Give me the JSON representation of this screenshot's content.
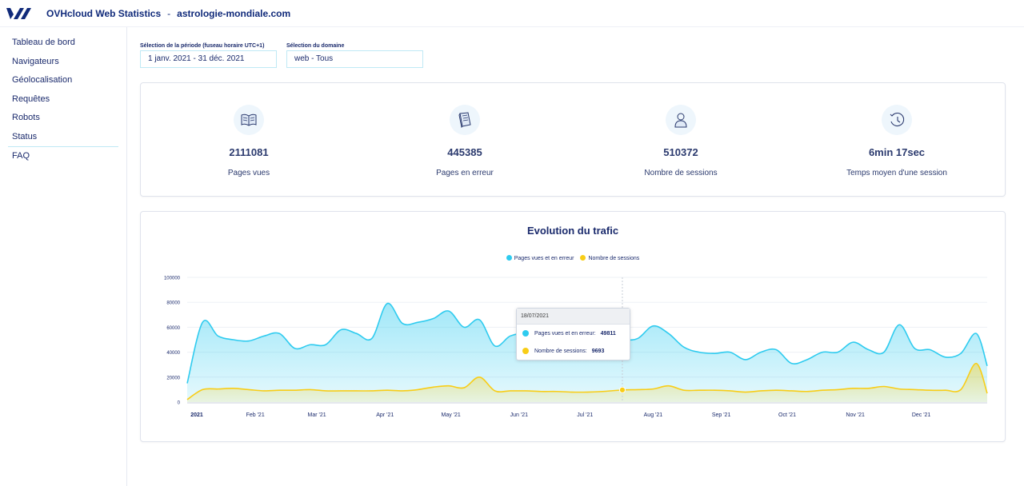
{
  "header": {
    "app_title": "OVHcloud Web Statistics",
    "separator": "-",
    "domain": "astrologie-mondiale.com"
  },
  "sidebar": {
    "items": [
      {
        "label": "Tableau de bord"
      },
      {
        "label": "Navigateurs"
      },
      {
        "label": "Géolocalisation"
      },
      {
        "label": "Requêtes"
      },
      {
        "label": "Robots"
      },
      {
        "label": "Status"
      },
      {
        "label": "FAQ"
      }
    ]
  },
  "filters": {
    "period_label": "Sélection de la période (fuseau horaire UTC+1)",
    "period_value": "1 janv. 2021 - 31 déc. 2021",
    "domain_label": "Sélection du domaine",
    "domain_value": "web - Tous"
  },
  "stats": [
    {
      "icon": "open-book-icon",
      "value": "2111081",
      "label": "Pages vues"
    },
    {
      "icon": "broken-page-icon",
      "value": "445385",
      "label": "Pages en erreur"
    },
    {
      "icon": "user-icon",
      "value": "510372",
      "label": "Nombre de sessions"
    },
    {
      "icon": "clock-history-icon",
      "value": "6min 17sec",
      "label": "Temps moyen d'une session"
    }
  ],
  "colors": {
    "pages": "#2ecbef",
    "sessions": "#f8cd17",
    "brand": "#102a7a"
  },
  "tooltip": {
    "date": "18/07/2021",
    "rows": [
      {
        "label": "Pages vues et en erreur:",
        "value": "49811"
      },
      {
        "label": "Nombre de sessions:",
        "value": "9693"
      }
    ]
  },
  "chart_data": {
    "type": "area",
    "title": "Evolution du trafic",
    "ylim": [
      0,
      100000
    ],
    "yticks": [
      0,
      20000,
      40000,
      60000,
      80000,
      100000
    ],
    "xtick_labels": [
      "2021",
      "Feb '21",
      "Mar '21",
      "Apr '21",
      "May '21",
      "Jun '21",
      "Jul '21",
      "Aug '21",
      "Sep '21",
      "Oct '21",
      "Nov '21",
      "Dec '21"
    ],
    "grid": true,
    "legend": "top-center",
    "series": [
      {
        "name": "Pages vues et en erreur",
        "x": [
          "2021-01-01",
          "2021-01-08",
          "2021-01-15",
          "2021-01-22",
          "2021-01-29",
          "2021-02-05",
          "2021-02-12",
          "2021-02-19",
          "2021-02-26",
          "2021-03-05",
          "2021-03-12",
          "2021-03-19",
          "2021-03-26",
          "2021-04-02",
          "2021-04-09",
          "2021-04-16",
          "2021-04-23",
          "2021-04-30",
          "2021-05-07",
          "2021-05-14",
          "2021-05-21",
          "2021-05-28",
          "2021-06-04",
          "2021-06-11",
          "2021-06-18",
          "2021-06-25",
          "2021-07-02",
          "2021-07-09",
          "2021-07-18",
          "2021-07-25",
          "2021-08-01",
          "2021-08-08",
          "2021-08-15",
          "2021-08-22",
          "2021-08-29",
          "2021-09-05",
          "2021-09-12",
          "2021-09-19",
          "2021-09-26",
          "2021-10-03",
          "2021-10-10",
          "2021-10-17",
          "2021-10-24",
          "2021-10-31",
          "2021-11-07",
          "2021-11-14",
          "2021-11-21",
          "2021-11-28",
          "2021-12-05",
          "2021-12-12",
          "2021-12-19",
          "2021-12-26",
          "2021-12-31"
        ],
        "values": [
          15000,
          64000,
          53000,
          50000,
          49000,
          53000,
          55000,
          43000,
          46000,
          46000,
          58000,
          55000,
          51000,
          79000,
          63000,
          64000,
          67000,
          73000,
          60000,
          66000,
          45000,
          53000,
          55000,
          52000,
          50000,
          48000,
          52000,
          50000,
          49811,
          51000,
          61000,
          55000,
          44000,
          40000,
          39000,
          40000,
          34000,
          40000,
          42000,
          31000,
          34000,
          40000,
          40000,
          48000,
          42000,
          40000,
          62000,
          43000,
          42000,
          36000,
          39000,
          55000,
          29000
        ]
      },
      {
        "name": "Nombre de sessions",
        "x": [
          "2021-01-01",
          "2021-01-08",
          "2021-01-15",
          "2021-01-22",
          "2021-01-29",
          "2021-02-05",
          "2021-02-12",
          "2021-02-19",
          "2021-02-26",
          "2021-03-05",
          "2021-03-12",
          "2021-03-19",
          "2021-03-26",
          "2021-04-02",
          "2021-04-09",
          "2021-04-16",
          "2021-04-23",
          "2021-04-30",
          "2021-05-07",
          "2021-05-14",
          "2021-05-21",
          "2021-05-28",
          "2021-06-04",
          "2021-06-11",
          "2021-06-18",
          "2021-06-25",
          "2021-07-02",
          "2021-07-09",
          "2021-07-18",
          "2021-07-25",
          "2021-08-01",
          "2021-08-08",
          "2021-08-15",
          "2021-08-22",
          "2021-08-29",
          "2021-09-05",
          "2021-09-12",
          "2021-09-19",
          "2021-09-26",
          "2021-10-03",
          "2021-10-10",
          "2021-10-17",
          "2021-10-24",
          "2021-10-31",
          "2021-11-07",
          "2021-11-14",
          "2021-11-21",
          "2021-11-28",
          "2021-12-05",
          "2021-12-12",
          "2021-12-19",
          "2021-12-26",
          "2021-12-31"
        ],
        "values": [
          2000,
          10000,
          10500,
          11000,
          10000,
          9000,
          9500,
          9500,
          10000,
          9000,
          9000,
          9000,
          9000,
          9500,
          9000,
          10000,
          12000,
          13000,
          11500,
          20000,
          9000,
          9000,
          9000,
          8500,
          8500,
          8000,
          8000,
          8500,
          9693,
          10000,
          10500,
          13000,
          9500,
          9500,
          9500,
          9000,
          8000,
          9000,
          9500,
          9000,
          8500,
          9500,
          10000,
          11000,
          11000,
          12500,
          10500,
          10000,
          9500,
          9500,
          10000,
          31000,
          7000
        ]
      }
    ]
  }
}
